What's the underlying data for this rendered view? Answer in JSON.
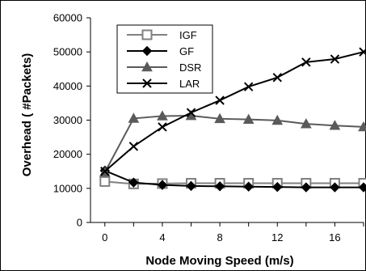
{
  "chart_data": {
    "type": "line",
    "title": "",
    "xlabel": "Node Moving Speed (m/s)",
    "ylabel": "Overhead ( #Packets)",
    "xlim": [
      -1,
      18
    ],
    "ylim": [
      0,
      60000
    ],
    "x_ticks": [
      0,
      4,
      8,
      12,
      16
    ],
    "x_tick_labels": [
      "0",
      "4",
      "8",
      "12",
      "16"
    ],
    "y_ticks": [
      0,
      10000,
      20000,
      30000,
      40000,
      50000,
      60000
    ],
    "y_tick_labels": [
      "0",
      "10000",
      "20000",
      "30000",
      "40000",
      "50000",
      "60000"
    ],
    "grid": false,
    "legend_position": "top-left",
    "x": [
      0,
      2,
      4,
      6,
      8,
      10,
      12,
      14,
      16,
      18
    ],
    "series": [
      {
        "name": "IGF",
        "marker": "square-open",
        "color": "#808080",
        "values": [
          12000,
          11300,
          11400,
          11500,
          11500,
          11500,
          11500,
          11500,
          11500,
          11500
        ]
      },
      {
        "name": "GF",
        "marker": "diamond",
        "color": "#000000",
        "values": [
          15200,
          11700,
          11000,
          10700,
          10600,
          10500,
          10400,
          10300,
          10300,
          10300
        ]
      },
      {
        "name": "DSR",
        "marker": "triangle",
        "color": "#5a5a5a",
        "values": [
          14700,
          30500,
          31200,
          31300,
          30400,
          30200,
          29900,
          28900,
          28400,
          28000
        ]
      },
      {
        "name": "LAR",
        "marker": "x",
        "color": "#000000",
        "values": [
          15000,
          22300,
          28000,
          32200,
          35800,
          39800,
          42500,
          47000,
          47900,
          50000
        ]
      }
    ]
  }
}
